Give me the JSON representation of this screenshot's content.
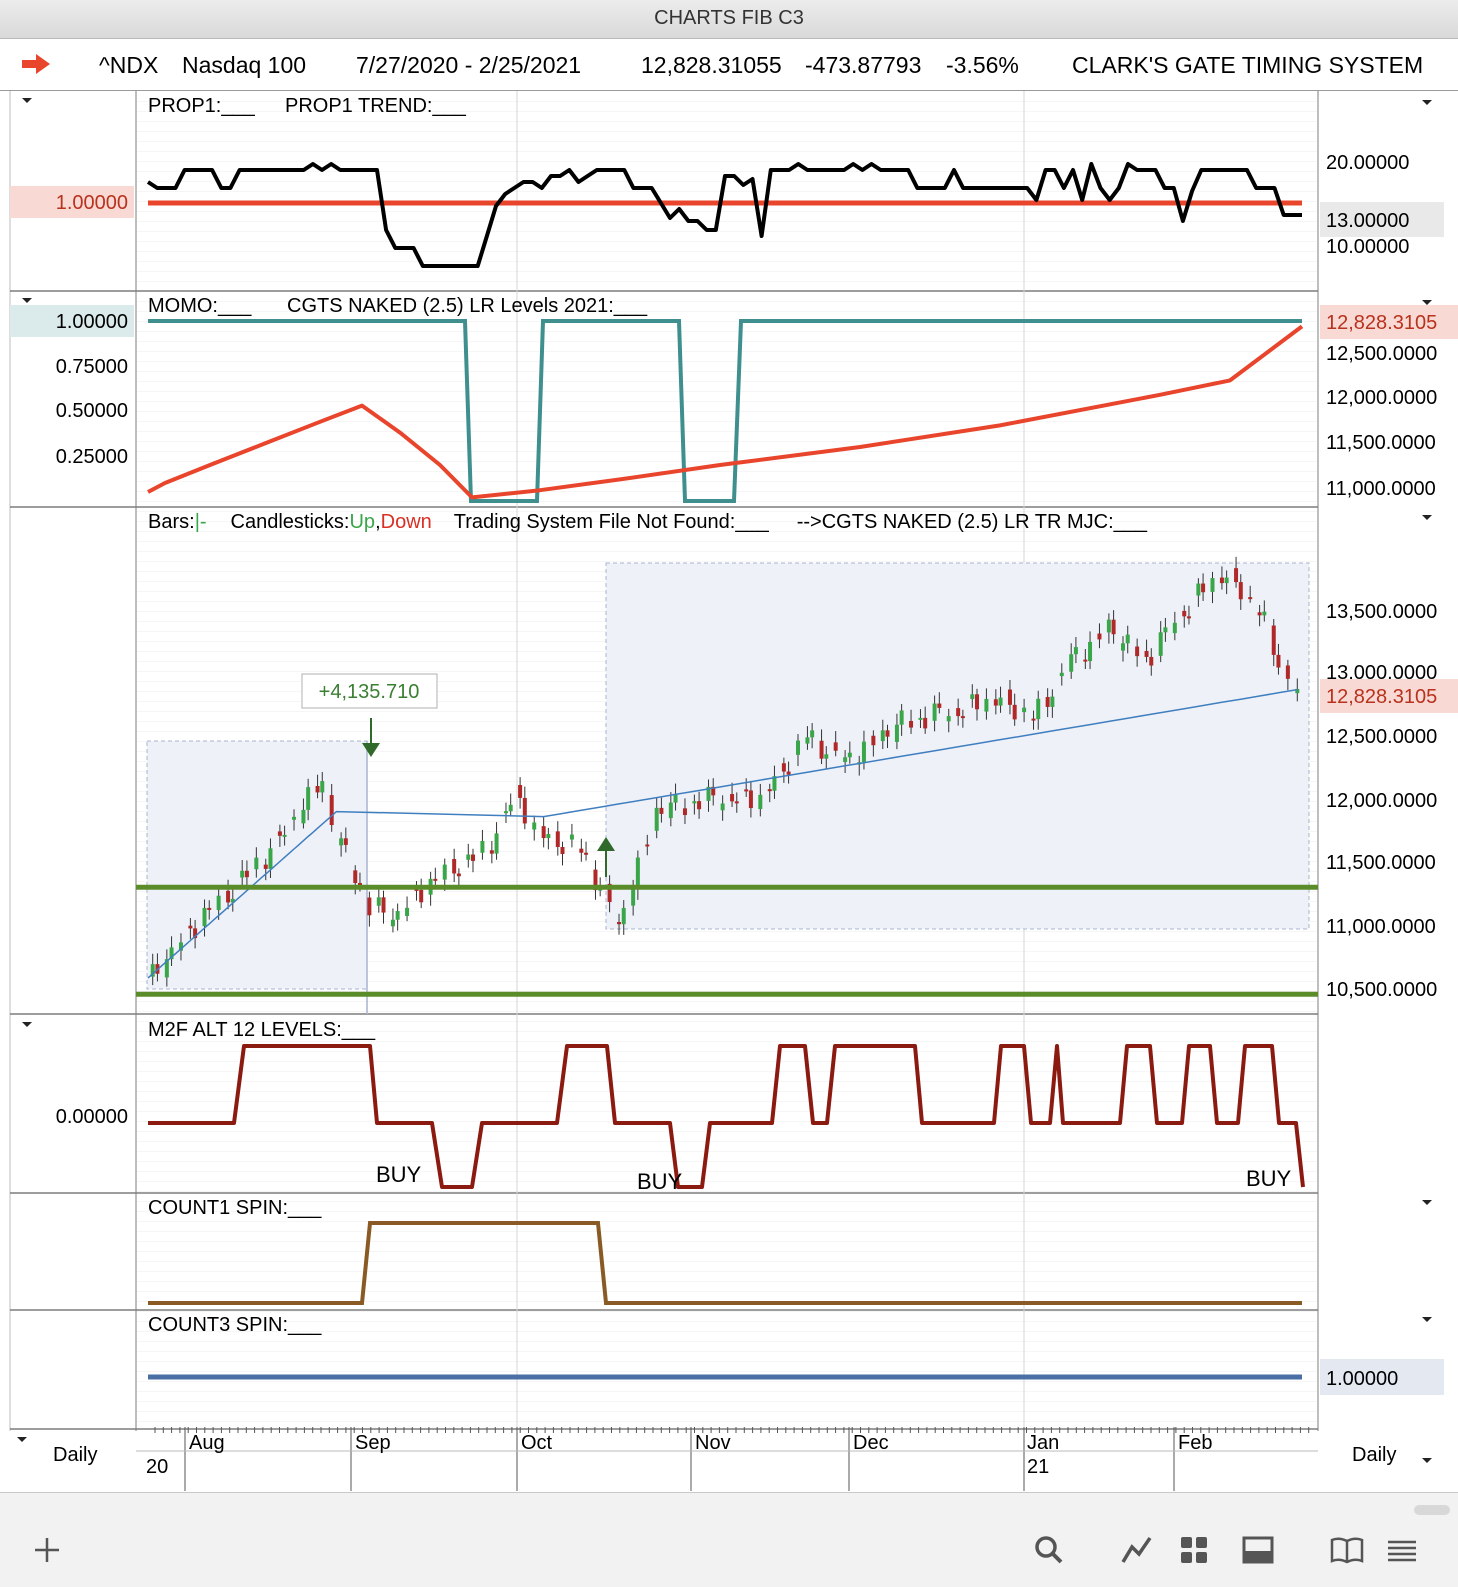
{
  "window": {
    "title": "CHARTS FIB C3"
  },
  "header": {
    "symbol": "^NDX",
    "name": "Nasdaq 100",
    "date_range": "7/27/2020 - 2/25/2021",
    "last_price": "12,828.31055",
    "change": "-473.87793",
    "change_pct": "-3.56%",
    "system_name": "CLARK'S GATE TIMING SYSTEM"
  },
  "colors": {
    "black_line": "#000000",
    "red_line": "#e8452c",
    "teal_line": "#3f8f8f",
    "green_level": "#5b8c2a",
    "maroon_line": "#8b1a10",
    "brown_line": "#8a5a24",
    "blue_line": "#4a6fa5",
    "candle_up": "#3aa64a",
    "candle_down": "#b02828"
  },
  "panels": {
    "prop1": {
      "title_a": "PROP1:___",
      "title_b": "PROP1 TREND:___",
      "left_badge": "1.00000",
      "right_labels": [
        "20.00000",
        "13.00000",
        "10.00000"
      ],
      "values": [
        16.5,
        15.5,
        15.5,
        15.5,
        18.5,
        18.5,
        18.5,
        18.5,
        15.5,
        15.5,
        18.5,
        18.5,
        18.5,
        18.5,
        18.5,
        18.5,
        18.5,
        18.5,
        19.5,
        18.5,
        19.5,
        18.5,
        18.5,
        18.5,
        18.5,
        18.5,
        8.5,
        5.5,
        5.5,
        5.5,
        2.5,
        2.5,
        2.5,
        2.5,
        2.5,
        2.5,
        2.5,
        7.5,
        12.5,
        14.5,
        15.5,
        16.5,
        16.5,
        15.5,
        17.5,
        17.5,
        18.5,
        16.5,
        17.5,
        18.5,
        18.5,
        18.5,
        18.5,
        15.5,
        15.5,
        15.5,
        13,
        10.5,
        12,
        10,
        10,
        8.5,
        8.5,
        17.5,
        17.5,
        16,
        17,
        7.5,
        18.5,
        18.5,
        18.5,
        19.5,
        18.5,
        18.5,
        18.5,
        18.5,
        18.5,
        19.5,
        18.5,
        19.5,
        18.5,
        18.5,
        18.5,
        18.5,
        15.5,
        15.5,
        15.5,
        15.5,
        18.5,
        15.5,
        15.5,
        15.5,
        15.5,
        15.5,
        15.5,
        15.5,
        15.5,
        13.5,
        18.5,
        18.5,
        15.5,
        18.5,
        13.5,
        19.5,
        15.5,
        13.5,
        15.5,
        19.5,
        18.5,
        18.5,
        18.5,
        15.5,
        15.5,
        10,
        15,
        18.5,
        18.5,
        18.5,
        18.5,
        18.5,
        18.5,
        15.5,
        15.5,
        15.5,
        11,
        11,
        11
      ],
      "trend_value": 13.0
    },
    "momo": {
      "title_a": "MOMO:___",
      "title_b": "CGTS NAKED (2.5) LR Levels 2021:___",
      "left_labels": [
        "1.00000",
        "0.75000",
        "0.50000",
        "0.25000"
      ],
      "right_labels": [
        "12,500.0000",
        "12,000.0000",
        "11,500.0000",
        "11,000.0000"
      ],
      "right_badge": "12,828.3105"
    },
    "price": {
      "title_bars": "Bars:",
      "title_bars_tick": "|-",
      "title_candles": "Candlesticks:",
      "title_up": "Up",
      "title_comma": ",",
      "title_down": "Down",
      "title_system": "Trading System File Not Found:___",
      "title_lr": "-->CGTS NAKED (2.5) LR TR MJC:___",
      "gain_label": "+4,135.710",
      "right_labels": [
        "13,500.0000",
        "13,000.0000",
        "12,500.0000",
        "12,000.0000",
        "11,500.0000",
        "11,000.0000",
        "10,500.0000"
      ],
      "right_badge": "12,828.3105",
      "level_lines": [
        11300,
        10450
      ]
    },
    "m2f": {
      "title": "M2F ALT 12 LEVELS:___",
      "left_label": "0.00000",
      "buy_labels": [
        "BUY",
        "BUY",
        "BUY"
      ]
    },
    "count1": {
      "title": "COUNT1 SPIN:___"
    },
    "count3": {
      "title": "COUNT3 SPIN:___",
      "right_badge": "1.00000"
    }
  },
  "xaxis": {
    "months": [
      "Aug",
      "Sep",
      "Oct",
      "Nov",
      "Dec",
      "Jan",
      "Feb"
    ],
    "years": [
      "20",
      "21"
    ],
    "left_period": "Daily",
    "right_period": "Daily"
  },
  "toolbar": {
    "add_icon": "plus-icon",
    "search_icon": "search-icon",
    "chart_icon": "line-chart-icon",
    "grid_icon": "grid-icon",
    "panel_icon": "panel-icon",
    "book_icon": "book-icon",
    "menu_icon": "menu-icon"
  }
}
